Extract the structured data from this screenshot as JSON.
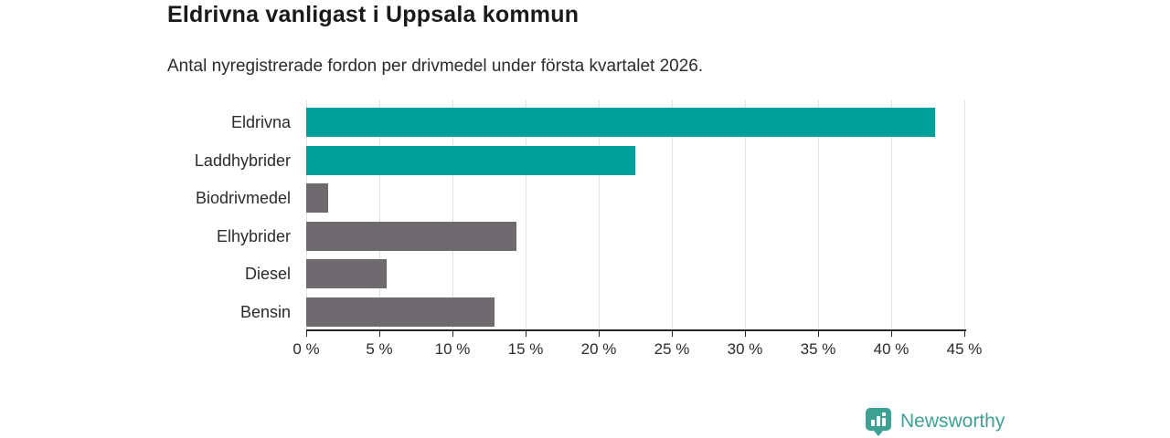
{
  "header": {
    "title": "Eldrivna vanligast i Uppsala kommun",
    "subtitle": "Antal nyregistrerade fordon per drivmedel under första kvartalet 2026."
  },
  "chart_data": {
    "type": "bar",
    "orientation": "horizontal",
    "title": "Eldrivna vanligast i Uppsala kommun",
    "subtitle": "Antal nyregistrerade fordon per drivmedel under första kvartalet 2026.",
    "categories": [
      "Eldrivna",
      "Laddhybrider",
      "Biodrivmedel",
      "Elhybrider",
      "Diesel",
      "Bensin"
    ],
    "values": [
      43,
      22.5,
      1.5,
      14.4,
      5.5,
      12.9
    ],
    "unit": "%",
    "bar_colors": [
      "#00a09a",
      "#00a09a",
      "#6e6a6e",
      "#6e6a6e",
      "#6e6a6e",
      "#6e6a6e"
    ],
    "xlim": [
      0,
      45
    ],
    "x_ticks": [
      0,
      5,
      10,
      15,
      20,
      25,
      30,
      35,
      40,
      45
    ],
    "x_tick_labels": [
      "0 %",
      "5 %",
      "10 %",
      "15 %",
      "20 %",
      "25 %",
      "30 %",
      "35 %",
      "40 %",
      "45 %"
    ],
    "grid": "vertical",
    "legend": "none",
    "colors": {
      "highlight": "#00a09a",
      "default": "#6e6a6e",
      "gridline": "#e1e1e1",
      "axis": "#262626",
      "text": "#2b2b2b"
    }
  },
  "footer": {
    "brand": "Newsworthy",
    "brand_color": "#3fa194",
    "logo_icon": "newsworthy-bar-chart-pin-icon"
  }
}
